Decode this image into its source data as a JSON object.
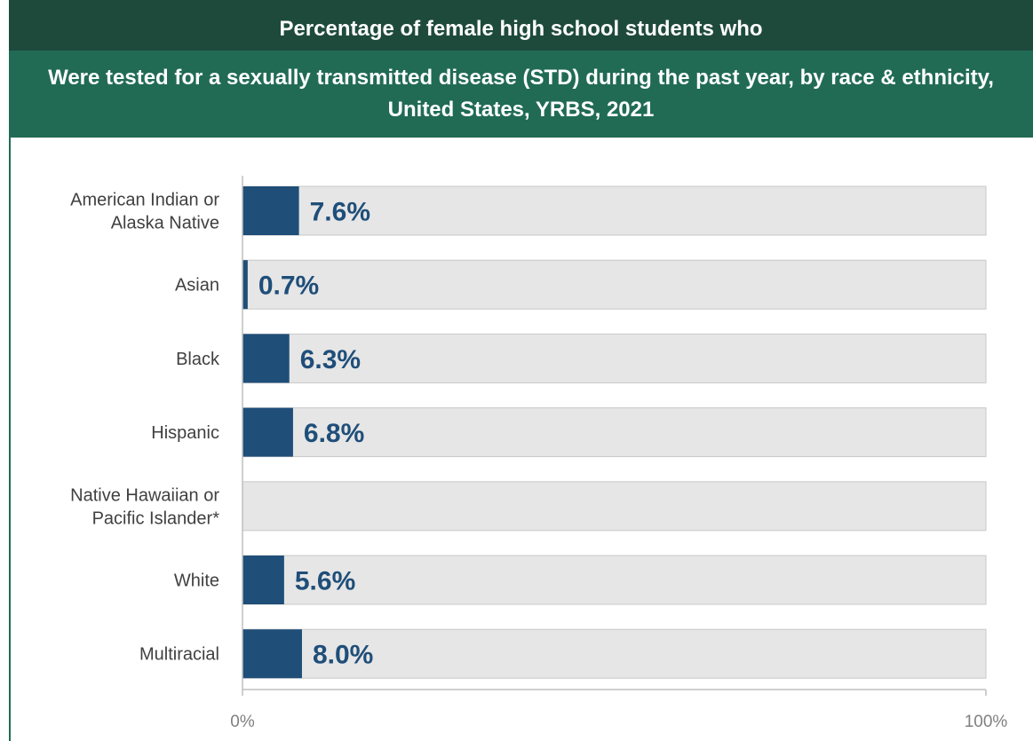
{
  "header": {
    "title": "Percentage of female high school students who",
    "subtitle": "Were tested for a sexually transmitted disease (STD) during the past year, by race & ethnicity, United States, YRBS, 2021"
  },
  "colors": {
    "bar": "#1f4e79",
    "track": "#e6e6e6",
    "track_border": "#c8c8c8",
    "header_dark": "#1e4a3c",
    "header_green": "#216b55"
  },
  "chart_data": {
    "type": "bar",
    "orientation": "horizontal",
    "categories": [
      [
        "American Indian or",
        "Alaska Native"
      ],
      [
        "Asian"
      ],
      [
        "Black"
      ],
      [
        "Hispanic"
      ],
      [
        "Native Hawaiian or",
        "Pacific Islander*"
      ],
      [
        "White"
      ],
      [
        "Multiracial"
      ]
    ],
    "values": [
      7.6,
      0.7,
      6.3,
      6.8,
      null,
      5.6,
      8.0
    ],
    "value_labels": [
      "7.6%",
      "0.7%",
      "6.3%",
      "6.8%",
      "",
      "5.6%",
      "8.0%"
    ],
    "xlim": [
      0,
      100
    ],
    "ticks": [
      "0%",
      "100%"
    ],
    "grid": false,
    "legend": "none"
  }
}
